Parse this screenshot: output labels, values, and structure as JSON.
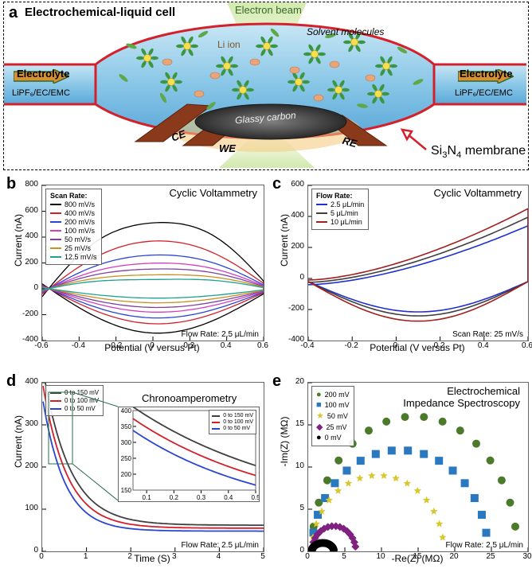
{
  "panelA": {
    "label": "a",
    "title": "Electrochemical-liquid cell",
    "beam_label": "Electron beam",
    "li_label": "Li ion",
    "solvent_label": "Solvent molecules",
    "electrolyte_left": "Electrolyte",
    "electrolyte_right": "Electrolyte",
    "electrolyte_formula": "LiPF₆/EC/EMC",
    "ce_label": "CE",
    "we_label": "WE",
    "re_label": "RE",
    "glassy_label": "Glassy carbon",
    "membrane_label": "Si₃N₄ membrane",
    "colors": {
      "beam": "#c6e89a",
      "cell_fill_top": "#a8d8f0",
      "cell_fill_mid": "#6fb8e0",
      "cell_outline": "#d4202a",
      "electrode_brown": "#8a3a1a",
      "glassy": "#4a4a4a",
      "li_ion_center": "#f5e050",
      "li_ion_petal": "#3a9640",
      "solvent": "#5fa84a",
      "arrow_fill": "#d89030",
      "arrow_border": "#2a6a2a",
      "membrane_arrow": "#d4202a",
      "orange_dot": "#e8a678"
    }
  },
  "panelB": {
    "label": "b",
    "title": "Cyclic Voltammetry",
    "xlabel": "Potential (V versus Pt)",
    "ylabel": "Current (nA)",
    "xlim": [
      -0.6,
      0.6
    ],
    "ylim": [
      -400,
      800
    ],
    "xticks": [
      -0.6,
      -0.4,
      -0.2,
      0.0,
      0.2,
      0.4,
      0.6
    ],
    "yticks": [
      -400,
      -200,
      0,
      200,
      400,
      600,
      800
    ],
    "legend_title": "Scan Rate:",
    "footnote": "Flow Rate: 2.5 μL/min",
    "series": [
      {
        "label": "800 mV/s",
        "color": "#000000"
      },
      {
        "label": "400 mV/s",
        "color": "#d4202a"
      },
      {
        "label": "200 mV/s",
        "color": "#2a46d0"
      },
      {
        "label": "100 mV/s",
        "color": "#d040c0"
      },
      {
        "label": "50 mV/s",
        "color": "#8040a0"
      },
      {
        "label": "25 mV/s",
        "color": "#c89020"
      },
      {
        "label": "12.5 mV/s",
        "color": "#20a090"
      }
    ],
    "curves": {
      "800": {
        "amp_f": 600,
        "amp_b": -380,
        "skew": 0.2
      },
      "400": {
        "amp_f": 420,
        "amp_b": -300,
        "skew": 0.15
      },
      "200": {
        "amp_f": 300,
        "amp_b": -250,
        "skew": 0.1
      },
      "100": {
        "amp_f": 230,
        "amp_b": -200,
        "skew": 0.08
      },
      "50": {
        "amp_f": 180,
        "amp_b": -160,
        "skew": 0.06
      },
      "25": {
        "amp_f": 130,
        "amp_b": -120,
        "skew": 0.04
      },
      "12": {
        "amp_f": 90,
        "amp_b": -80,
        "skew": 0.02
      }
    }
  },
  "panelC": {
    "label": "c",
    "title": "Cyclic Voltammetry",
    "xlabel": "Potential (V versus Pt)",
    "ylabel": "Current (nA)",
    "xlim": [
      -0.4,
      0.6
    ],
    "ylim": [
      -400,
      600
    ],
    "xticks": [
      -0.4,
      -0.2,
      0.0,
      0.2,
      0.4,
      0.6
    ],
    "yticks": [
      -400,
      -200,
      0,
      200,
      400,
      600
    ],
    "legend_title": "Flow Rate:",
    "footnote": "Scan Rate: 25 mV/s",
    "series": [
      {
        "label": "2.5 μL/min",
        "color": "#2030d0"
      },
      {
        "label": "5 μL/min",
        "color": "#404040"
      },
      {
        "label": "10 μL/min",
        "color": "#a02020"
      }
    ]
  },
  "panelD": {
    "label": "d",
    "title": "Chronoamperometry",
    "xlabel": "Time (S)",
    "ylabel": "Current (nA)",
    "xlim": [
      0,
      5
    ],
    "ylim": [
      0,
      400
    ],
    "xticks": [
      0,
      1,
      2,
      3,
      4,
      5
    ],
    "yticks": [
      0,
      100,
      200,
      300,
      400
    ],
    "legend_title": "",
    "footnote": "Flow Rate: 2.5 μL/min",
    "series": [
      {
        "label": "0 to 150 mV",
        "color": "#404040",
        "A": 380,
        "tau": 0.6,
        "base": 62
      },
      {
        "label": "0 to 100 mV",
        "color": "#d4202a",
        "A": 350,
        "tau": 0.55,
        "base": 55
      },
      {
        "label": "0 to 50 mV",
        "color": "#2a46d0",
        "A": 320,
        "tau": 0.5,
        "base": 48
      }
    ],
    "inset": {
      "xlim": [
        0.05,
        0.5
      ],
      "ylim": [
        150,
        400
      ],
      "xticks": [
        0.1,
        0.2,
        0.3,
        0.4,
        0.5
      ],
      "yticks": [
        150,
        200,
        250,
        300,
        350,
        400
      ]
    }
  },
  "panelE": {
    "label": "e",
    "title": "Electrochemical\nImpedance Spectroscopy",
    "xlabel": "-Re(Z) (MΩ)",
    "ylabel": "-Im(Z) (MΩ)",
    "xlim": [
      0,
      30
    ],
    "ylim": [
      0,
      20
    ],
    "xticks": [
      0,
      5,
      10,
      15,
      20,
      25,
      30
    ],
    "yticks": [
      0,
      5,
      10,
      15,
      20
    ],
    "footnote": "Flow Rate: 2.5 μL/min",
    "series": [
      {
        "label": "200 mV",
        "color": "#4a7a2a",
        "marker": "circle",
        "R": 28,
        "h": 16
      },
      {
        "label": "100 mV",
        "color": "#2a78c0",
        "marker": "square",
        "R": 24,
        "h": 12
      },
      {
        "label": "50 mV",
        "color": "#d8c830",
        "marker": "star",
        "R": 18,
        "h": 9
      },
      {
        "label": "25 mV",
        "color": "#802080",
        "marker": "diamond",
        "R": 6,
        "h": 3
      },
      {
        "label": "0 mV",
        "color": "#000000",
        "marker": "circle",
        "R": 3,
        "h": 1
      }
    ]
  }
}
